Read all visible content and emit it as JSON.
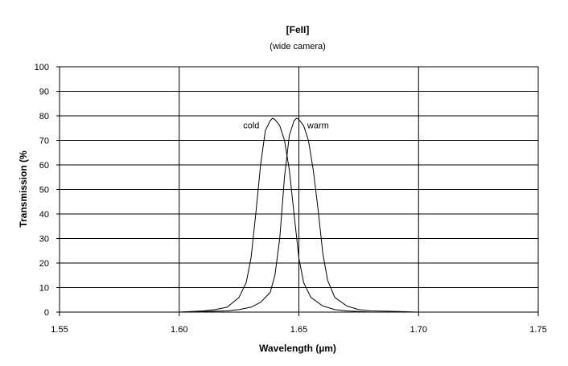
{
  "chart_data": {
    "type": "line",
    "title": "[FeII]",
    "subtitle": "(wide camera)",
    "xlabel": "Wavelength (µm)",
    "ylabel": "Transmission (%",
    "xlim": [
      1.55,
      1.75
    ],
    "ylim": [
      0,
      100
    ],
    "x_ticks": [
      "1.55",
      "1.60",
      "1.65",
      "1.70",
      "1.75"
    ],
    "y_ticks": [
      "0",
      "10",
      "20",
      "30",
      "40",
      "50",
      "60",
      "70",
      "80",
      "90",
      "100"
    ],
    "grid": true,
    "legend": "none",
    "series": [
      {
        "name": "cold",
        "color": "#000000",
        "x": [
          1.55,
          1.6,
          1.61,
          1.615,
          1.62,
          1.625,
          1.628,
          1.63,
          1.632,
          1.634,
          1.636,
          1.638,
          1.639,
          1.64,
          1.642,
          1.644,
          1.646,
          1.648,
          1.65,
          1.652,
          1.655,
          1.66,
          1.665,
          1.67,
          1.68,
          1.7,
          1.75
        ],
        "y": [
          0,
          0,
          0.5,
          1,
          2,
          6,
          12,
          22,
          40,
          60,
          74,
          78,
          79,
          78.5,
          76,
          70,
          58,
          40,
          22,
          12,
          6,
          2.5,
          1,
          0.5,
          0,
          0,
          0
        ]
      },
      {
        "name": "warm",
        "color": "#000000",
        "x": [
          1.55,
          1.6,
          1.62,
          1.625,
          1.63,
          1.634,
          1.638,
          1.64,
          1.642,
          1.644,
          1.646,
          1.648,
          1.649,
          1.65,
          1.652,
          1.654,
          1.656,
          1.658,
          1.66,
          1.662,
          1.665,
          1.67,
          1.675,
          1.68,
          1.69,
          1.7,
          1.75
        ],
        "y": [
          0,
          0,
          0.5,
          1,
          2,
          4,
          8,
          15,
          30,
          55,
          72,
          78,
          79,
          78.5,
          76,
          70,
          58,
          42,
          24,
          13,
          6,
          2.5,
          1,
          0.5,
          0.3,
          0,
          0
        ]
      }
    ],
    "annotations": [
      {
        "text": "cold",
        "x": 1.6335,
        "y": 75
      },
      {
        "text": "warm",
        "x": 1.6535,
        "y": 75
      }
    ]
  }
}
